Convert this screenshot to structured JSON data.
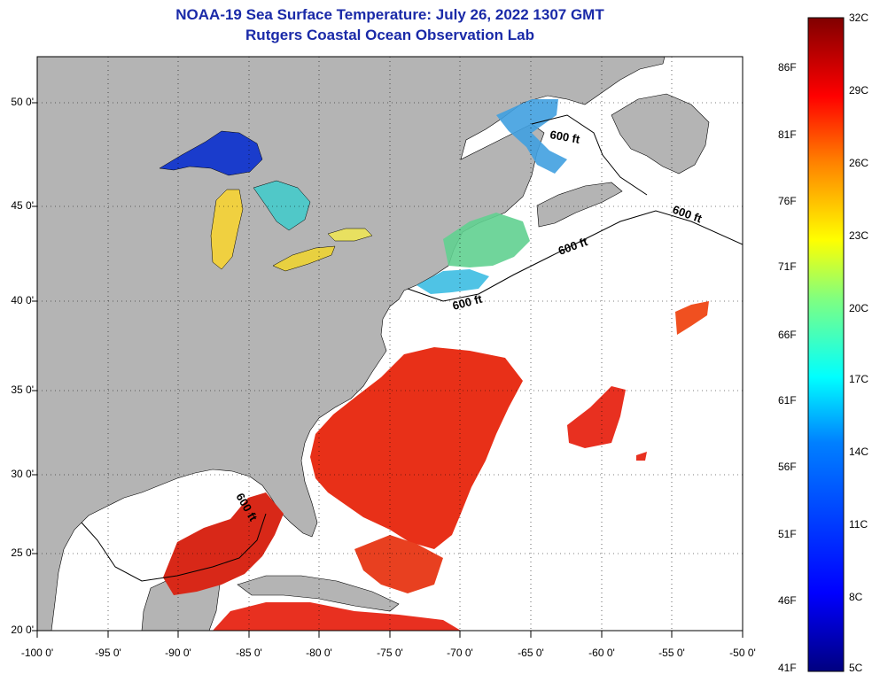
{
  "title_line1": "NOAA-19 Sea Surface Temperature:  July 26, 2022 1307 GMT",
  "title_line2": "Rutgers Coastal Ocean Observation Lab",
  "lat_labels": [
    "50 0'",
    "45 0'",
    "40 0'",
    "35 0'",
    "30 0'",
    "25 0'",
    "20 0'"
  ],
  "lon_labels": [
    "-100 0'",
    "-95 0'",
    "-90 0'",
    "-85 0'",
    "-80 0'",
    "-75 0'",
    "-70 0'",
    "-65 0'",
    "-60 0'",
    "-55 0'",
    "-50 0'"
  ],
  "contour_labels": [
    "600 ft",
    "600 ft",
    "600 ft",
    "600 ft",
    "600 ft"
  ],
  "colorbar": {
    "celsius_ticks": [
      "32C",
      "29C",
      "26C",
      "23C",
      "20C",
      "17C",
      "14C",
      "11C",
      "8C",
      "5C"
    ],
    "fahrenheit_ticks": [
      "86F",
      "81F",
      "76F",
      "71F",
      "66F",
      "61F",
      "56F",
      "51F",
      "46F",
      "41F"
    ]
  },
  "colors": {
    "land": "#b4b4b4",
    "title": "#1a2aa8",
    "colormap": [
      "#000080",
      "#0000ff",
      "#0080ff",
      "#00ffff",
      "#80ff80",
      "#ffff00",
      "#ff8000",
      "#ff0000",
      "#800000"
    ]
  }
}
